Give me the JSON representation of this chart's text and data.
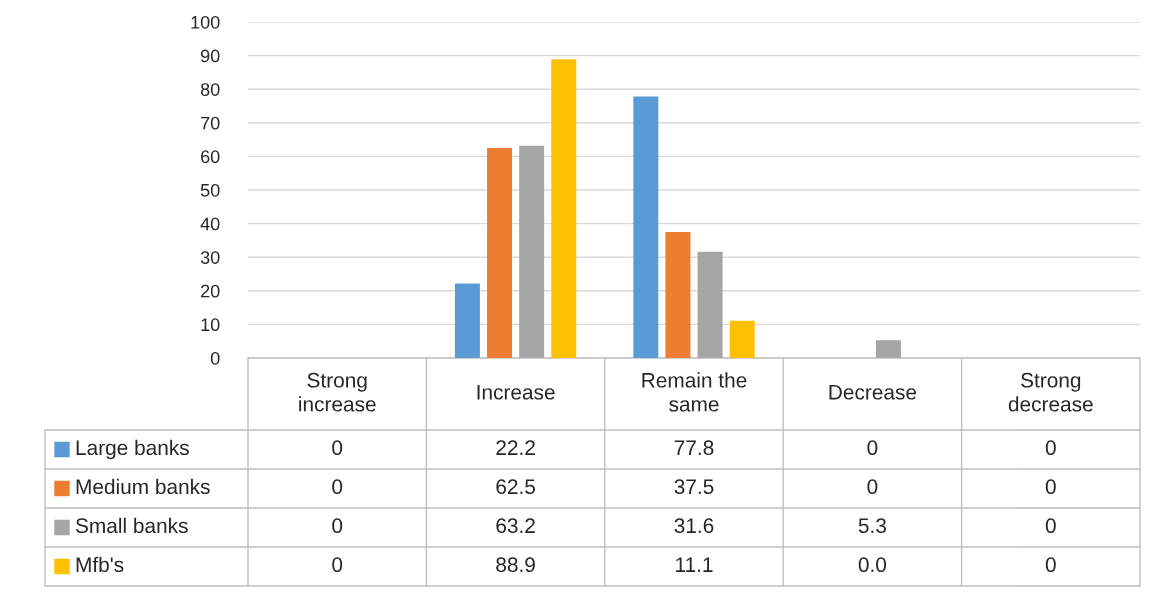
{
  "chart_data": {
    "type": "bar",
    "categories": [
      "Strong increase",
      "Increase",
      "Remain the same",
      "Decrease",
      "Strong decrease"
    ],
    "series": [
      {
        "name": "Large banks",
        "color": "#5b9bd5",
        "values": [
          0,
          22.2,
          77.8,
          0,
          0
        ],
        "value_labels": [
          "0",
          "22.2",
          "77.8",
          "0",
          "0"
        ]
      },
      {
        "name": "Medium banks",
        "color": "#ed7d31",
        "values": [
          0,
          62.5,
          37.5,
          0,
          0
        ],
        "value_labels": [
          "0",
          "62.5",
          "37.5",
          "0",
          "0"
        ]
      },
      {
        "name": "Small banks",
        "color": "#a5a5a5",
        "values": [
          0,
          63.2,
          31.6,
          5.3,
          0
        ],
        "value_labels": [
          "0",
          "63.2",
          "31.6",
          "5.3",
          "0"
        ]
      },
      {
        "name": "Mfb's",
        "color": "#ffc000",
        "values": [
          0,
          88.9,
          11.1,
          0.0,
          0
        ],
        "value_labels": [
          "0",
          "88.9",
          "11.1",
          "0.0",
          "0"
        ]
      }
    ],
    "ylim": [
      0,
      100
    ],
    "yticks": [
      0,
      10,
      20,
      30,
      40,
      50,
      60,
      70,
      80,
      90,
      100
    ],
    "grid": "y",
    "legend": "bottom left"
  }
}
